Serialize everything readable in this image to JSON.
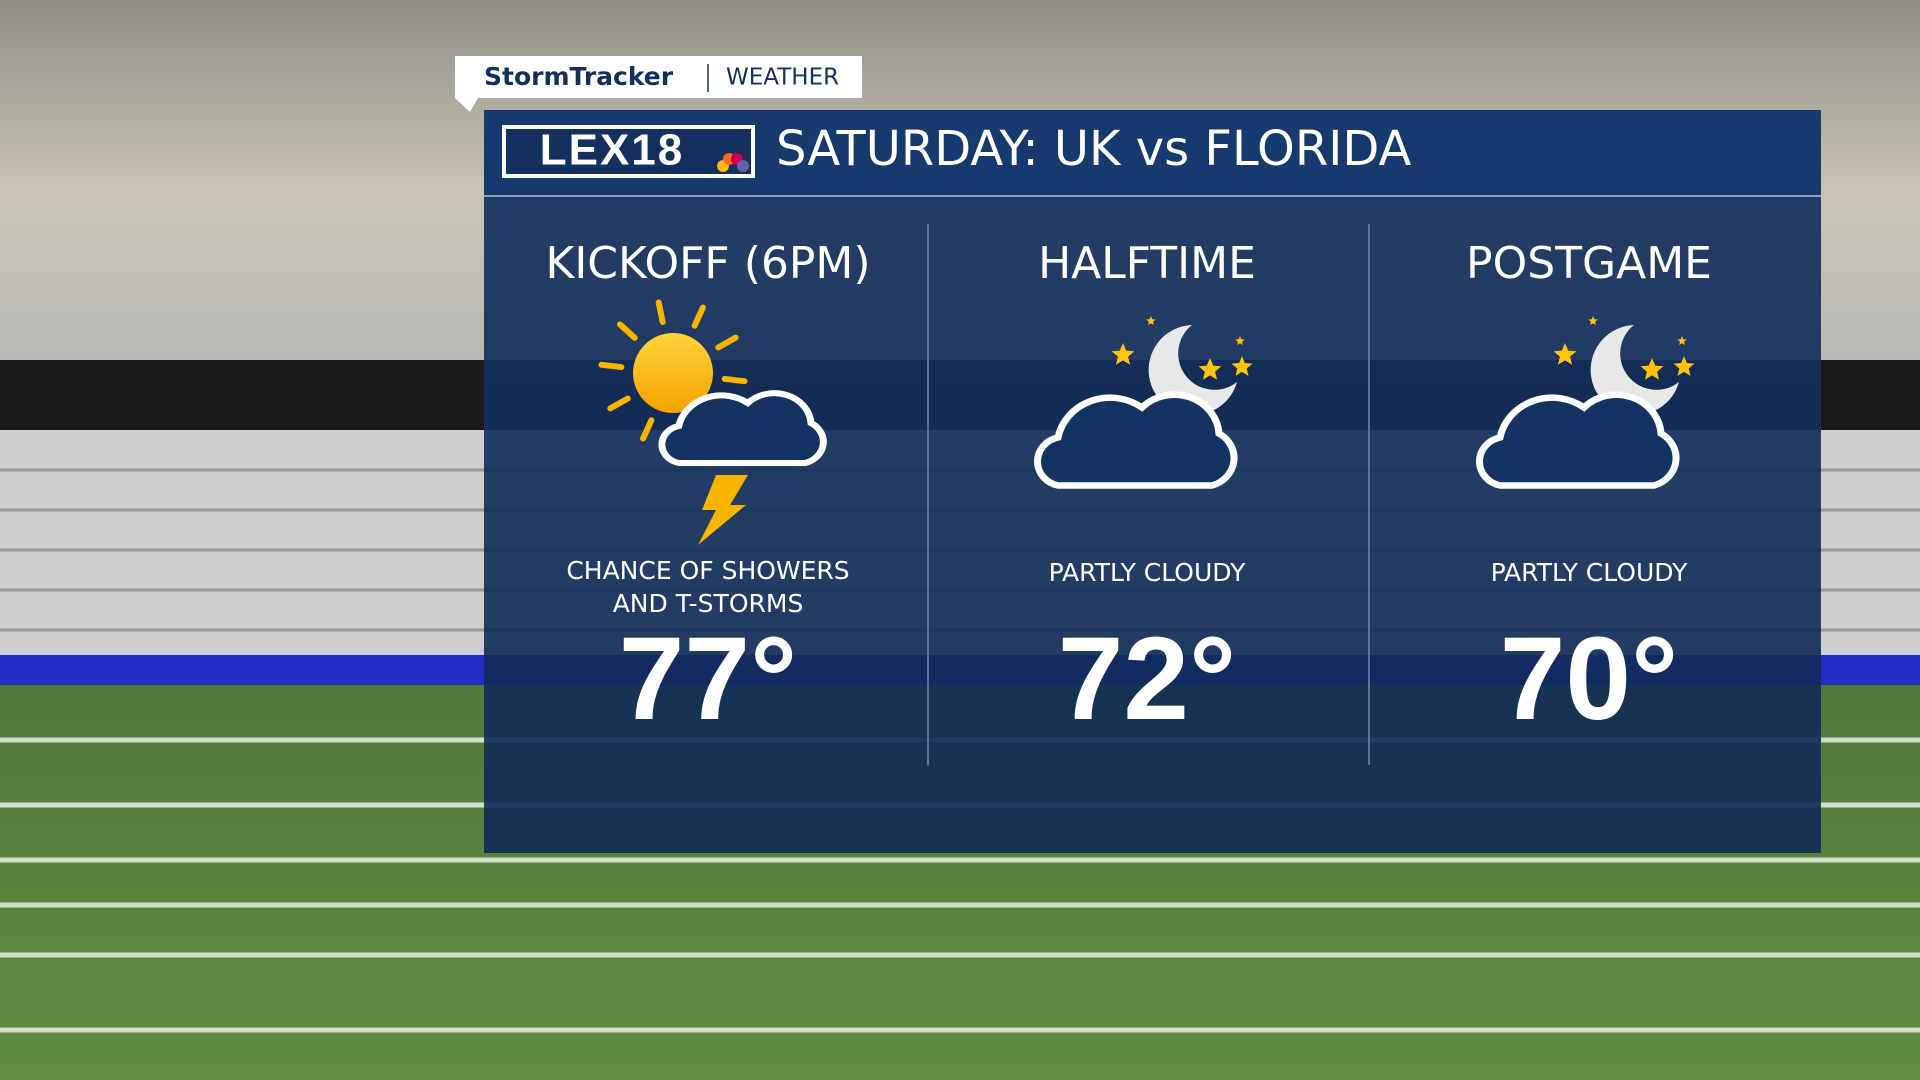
{
  "brand": {
    "name": "StormTracker",
    "section": "WEATHER"
  },
  "logo": "LEX18",
  "title": "SATURDAY: UK vs FLORIDA",
  "periods": [
    {
      "label": "KICKOFF (6PM)",
      "condition": [
        "CHANCE OF SHOWERS",
        "AND T-STORMS"
      ],
      "temp": "77°"
    },
    {
      "label": "HALFTIME",
      "condition": [
        "PARTLY CLOUDY"
      ],
      "temp": "72°"
    },
    {
      "label": "POSTGAME",
      "condition": [
        "PARTLY CLOUDY"
      ],
      "temp": "70°"
    }
  ]
}
